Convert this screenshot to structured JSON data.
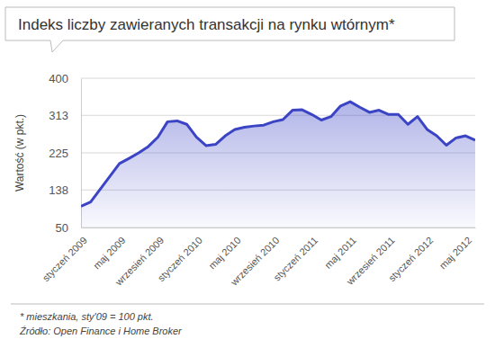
{
  "chart_data": {
    "type": "line",
    "title": "Indeks liczby zawieranych transakcji na rynku wtórnym*",
    "y_label": "Wartość (w pkt.)",
    "notes": [
      "* mieszkania, sty'09 = 100 pkt.",
      "Źródło: Open Finance i Home Broker"
    ],
    "categories": [
      "styczeń 2009",
      null,
      null,
      null,
      "maj 2009",
      null,
      null,
      null,
      "wrzesień 2009",
      null,
      null,
      null,
      "styczeń 2010",
      null,
      null,
      null,
      "maj 2010",
      null,
      null,
      null,
      "wrzesień 2010",
      null,
      null,
      null,
      "styczeń 2011",
      null,
      null,
      null,
      "maj 2011",
      null,
      null,
      null,
      "wrzesień 2011",
      null,
      null,
      null,
      "styczeń 2012",
      null,
      null,
      null,
      "maj 2012",
      null
    ],
    "values": [
      100,
      110,
      140,
      170,
      200,
      212,
      225,
      240,
      262,
      298,
      300,
      292,
      262,
      242,
      245,
      265,
      280,
      285,
      288,
      290,
      298,
      303,
      325,
      326,
      315,
      302,
      310,
      335,
      345,
      332,
      320,
      325,
      315,
      315,
      292,
      310,
      280,
      265,
      243,
      260,
      265,
      255
    ],
    "color": "#3b44c4",
    "ylim": [
      50,
      400
    ],
    "yticks": [
      50,
      138,
      225,
      313,
      400
    ],
    "grid": true
  }
}
